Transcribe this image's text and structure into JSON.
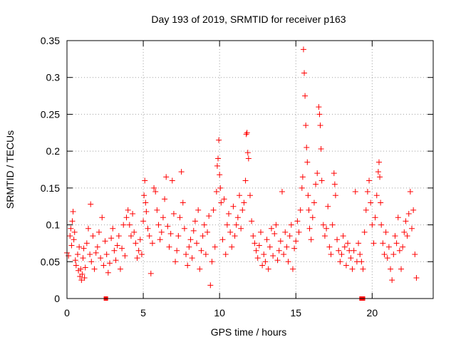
{
  "chart_data": {
    "type": "scatter",
    "title": "Day 193 of 2019, SRMTID for receiver p163",
    "xlabel": "GPS time / hours",
    "ylabel": "SRMTID / TECUs",
    "xlim": [
      0,
      24
    ],
    "ylim": [
      0,
      0.35
    ],
    "x_ticks": [
      0,
      5,
      10,
      15,
      20
    ],
    "x_tick_labels": [
      "0",
      "5",
      "10",
      "15",
      "20"
    ],
    "y_ticks": [
      0,
      0.05,
      0.1,
      0.15,
      0.2,
      0.25,
      0.3,
      0.35
    ],
    "y_tick_labels": [
      "0",
      "0.05",
      "0.1",
      "0.15",
      "0.2",
      "0.25",
      "0.3",
      "0.35"
    ],
    "grid": true,
    "marker": "+",
    "color": "#ff0000",
    "legend": "none",
    "series": [
      {
        "name": "SRMTID",
        "points": [
          [
            0.0,
            0.062
          ],
          [
            0.1,
            0.058
          ],
          [
            0.2,
            0.085
          ],
          [
            0.25,
            0.095
          ],
          [
            0.3,
            0.072
          ],
          [
            0.35,
            0.105
          ],
          [
            0.4,
            0.118
          ],
          [
            0.45,
            0.08
          ],
          [
            0.5,
            0.09
          ],
          [
            0.55,
            0.052
          ],
          [
            0.6,
            0.045
          ],
          [
            0.7,
            0.06
          ],
          [
            0.75,
            0.038
          ],
          [
            0.8,
            0.07
          ],
          [
            0.85,
            0.03
          ],
          [
            0.9,
            0.04
          ],
          [
            0.95,
            0.025
          ],
          [
            1.0,
            0.033
          ],
          [
            1.05,
            0.055
          ],
          [
            1.1,
            0.068
          ],
          [
            1.15,
            0.028
          ],
          [
            1.2,
            0.042
          ],
          [
            1.3,
            0.075
          ],
          [
            1.4,
            0.095
          ],
          [
            1.5,
            0.06
          ],
          [
            1.55,
            0.128
          ],
          [
            1.6,
            0.05
          ],
          [
            1.7,
            0.085
          ],
          [
            1.8,
            0.04
          ],
          [
            1.9,
            0.062
          ],
          [
            2.0,
            0.07
          ],
          [
            2.1,
            0.09
          ],
          [
            2.2,
            0.055
          ],
          [
            2.3,
            0.11
          ],
          [
            2.4,
            0.045
          ],
          [
            2.5,
            0.078
          ],
          [
            2.6,
            0.06
          ],
          [
            2.7,
            0.035
          ],
          [
            2.8,
            0.048
          ],
          [
            2.9,
            0.082
          ],
          [
            3.0,
            0.095
          ],
          [
            3.1,
            0.065
          ],
          [
            3.2,
            0.052
          ],
          [
            3.3,
            0.072
          ],
          [
            3.4,
            0.085
          ],
          [
            3.5,
            0.04
          ],
          [
            3.6,
            0.068
          ],
          [
            3.7,
            0.1
          ],
          [
            3.8,
            0.058
          ],
          [
            3.9,
            0.11
          ],
          [
            4.0,
            0.12
          ],
          [
            4.1,
            0.1
          ],
          [
            4.2,
            0.085
          ],
          [
            4.3,
            0.115
          ],
          [
            4.4,
            0.09
          ],
          [
            4.5,
            0.075
          ],
          [
            4.6,
            0.055
          ],
          [
            4.7,
            0.065
          ],
          [
            4.8,
            0.08
          ],
          [
            4.9,
            0.06
          ],
          [
            5.0,
            0.105
          ],
          [
            5.05,
            0.14
          ],
          [
            5.1,
            0.16
          ],
          [
            5.15,
            0.13
          ],
          [
            5.2,
            0.118
          ],
          [
            5.3,
            0.095
          ],
          [
            5.4,
            0.085
          ],
          [
            5.5,
            0.034
          ],
          [
            5.6,
            0.075
          ],
          [
            5.7,
            0.15
          ],
          [
            5.8,
            0.145
          ],
          [
            5.9,
            0.12
          ],
          [
            6.0,
            0.1
          ],
          [
            6.1,
            0.08
          ],
          [
            6.2,
            0.09
          ],
          [
            6.3,
            0.11
          ],
          [
            6.4,
            0.135
          ],
          [
            6.5,
            0.165
          ],
          [
            6.6,
            0.098
          ],
          [
            6.7,
            0.07
          ],
          [
            6.8,
            0.088
          ],
          [
            6.9,
            0.16
          ],
          [
            7.0,
            0.115
          ],
          [
            7.1,
            0.05
          ],
          [
            7.2,
            0.065
          ],
          [
            7.3,
            0.085
          ],
          [
            7.4,
            0.11
          ],
          [
            7.5,
            0.172
          ],
          [
            7.6,
            0.13
          ],
          [
            7.7,
            0.095
          ],
          [
            7.8,
            0.06
          ],
          [
            7.9,
            0.045
          ],
          [
            8.0,
            0.07
          ],
          [
            8.1,
            0.08
          ],
          [
            8.2,
            0.055
          ],
          [
            8.3,
            0.092
          ],
          [
            8.4,
            0.105
          ],
          [
            8.5,
            0.075
          ],
          [
            8.6,
            0.12
          ],
          [
            8.7,
            0.04
          ],
          [
            8.8,
            0.065
          ],
          [
            8.9,
            0.085
          ],
          [
            9.0,
            0.1
          ],
          [
            9.1,
            0.06
          ],
          [
            9.2,
            0.09
          ],
          [
            9.3,
            0.112
          ],
          [
            9.4,
            0.018
          ],
          [
            9.5,
            0.05
          ],
          [
            9.6,
            0.12
          ],
          [
            9.7,
            0.07
          ],
          [
            9.8,
            0.145
          ],
          [
            9.85,
            0.18
          ],
          [
            9.9,
            0.19
          ],
          [
            9.95,
            0.215
          ],
          [
            10.0,
            0.168
          ],
          [
            10.05,
            0.15
          ],
          [
            10.1,
            0.13
          ],
          [
            10.2,
            0.08
          ],
          [
            10.3,
            0.135
          ],
          [
            10.4,
            0.06
          ],
          [
            10.5,
            0.1
          ],
          [
            10.6,
            0.115
          ],
          [
            10.7,
            0.09
          ],
          [
            10.8,
            0.07
          ],
          [
            10.9,
            0.125
          ],
          [
            11.0,
            0.085
          ],
          [
            11.1,
            0.1
          ],
          [
            11.2,
            0.11
          ],
          [
            11.3,
            0.14
          ],
          [
            11.4,
            0.095
          ],
          [
            11.5,
            0.12
          ],
          [
            11.6,
            0.13
          ],
          [
            11.7,
            0.16
          ],
          [
            11.75,
            0.223
          ],
          [
            11.8,
            0.225
          ],
          [
            11.85,
            0.198
          ],
          [
            11.9,
            0.19
          ],
          [
            12.0,
            0.14
          ],
          [
            12.1,
            0.105
          ],
          [
            12.2,
            0.085
          ],
          [
            12.3,
            0.075
          ],
          [
            12.4,
            0.065
          ],
          [
            12.5,
            0.055
          ],
          [
            12.6,
            0.072
          ],
          [
            12.7,
            0.09
          ],
          [
            12.8,
            0.045
          ],
          [
            12.9,
            0.06
          ],
          [
            13.0,
            0.05
          ],
          [
            13.1,
            0.08
          ],
          [
            13.2,
            0.04
          ],
          [
            13.3,
            0.07
          ],
          [
            13.4,
            0.095
          ],
          [
            13.5,
            0.058
          ],
          [
            13.6,
            0.088
          ],
          [
            13.7,
            0.1
          ],
          [
            13.8,
            0.052
          ],
          [
            13.9,
            0.065
          ],
          [
            14.0,
            0.078
          ],
          [
            14.1,
            0.145
          ],
          [
            14.2,
            0.06
          ],
          [
            14.3,
            0.09
          ],
          [
            14.4,
            0.07
          ],
          [
            14.5,
            0.05
          ],
          [
            14.6,
            0.085
          ],
          [
            14.7,
            0.1
          ],
          [
            14.8,
            0.04
          ],
          [
            14.9,
            0.068
          ],
          [
            15.0,
            0.078
          ],
          [
            15.1,
            0.105
          ],
          [
            15.2,
            0.09
          ],
          [
            15.3,
            0.12
          ],
          [
            15.4,
            0.15
          ],
          [
            15.45,
            0.165
          ],
          [
            15.5,
            0.338
          ],
          [
            15.55,
            0.306
          ],
          [
            15.6,
            0.275
          ],
          [
            15.65,
            0.235
          ],
          [
            15.7,
            0.205
          ],
          [
            15.75,
            0.185
          ],
          [
            15.8,
            0.14
          ],
          [
            15.85,
            0.12
          ],
          [
            15.9,
            0.095
          ],
          [
            16.0,
            0.08
          ],
          [
            16.1,
            0.11
          ],
          [
            16.2,
            0.13
          ],
          [
            16.3,
            0.155
          ],
          [
            16.4,
            0.17
          ],
          [
            16.5,
            0.26
          ],
          [
            16.55,
            0.25
          ],
          [
            16.6,
            0.235
          ],
          [
            16.65,
            0.203
          ],
          [
            16.7,
            0.16
          ],
          [
            16.8,
            0.1
          ],
          [
            16.9,
            0.085
          ],
          [
            17.0,
            0.095
          ],
          [
            17.1,
            0.125
          ],
          [
            17.2,
            0.07
          ],
          [
            17.3,
            0.06
          ],
          [
            17.4,
            0.1
          ],
          [
            17.5,
            0.17
          ],
          [
            17.55,
            0.155
          ],
          [
            17.6,
            0.14
          ],
          [
            17.7,
            0.08
          ],
          [
            17.8,
            0.065
          ],
          [
            17.9,
            0.05
          ],
          [
            18.0,
            0.06
          ],
          [
            18.1,
            0.085
          ],
          [
            18.2,
            0.07
          ],
          [
            18.3,
            0.045
          ],
          [
            18.4,
            0.075
          ],
          [
            18.5,
            0.065
          ],
          [
            18.6,
            0.055
          ],
          [
            18.7,
            0.04
          ],
          [
            18.8,
            0.065
          ],
          [
            18.9,
            0.145
          ],
          [
            19.0,
            0.05
          ],
          [
            19.1,
            0.075
          ],
          [
            19.2,
            0.06
          ],
          [
            19.3,
            0.05
          ],
          [
            19.4,
            0.04
          ],
          [
            19.5,
            0.09
          ],
          [
            19.6,
            0.12
          ],
          [
            19.7,
            0.145
          ],
          [
            19.8,
            0.16
          ],
          [
            19.9,
            0.13
          ],
          [
            20.0,
            0.1
          ],
          [
            20.1,
            0.075
          ],
          [
            20.2,
            0.11
          ],
          [
            20.3,
            0.14
          ],
          [
            20.4,
            0.172
          ],
          [
            20.45,
            0.185
          ],
          [
            20.5,
            0.165
          ],
          [
            20.55,
            0.13
          ],
          [
            20.6,
            0.1
          ],
          [
            20.7,
            0.075
          ],
          [
            20.8,
            0.06
          ],
          [
            20.9,
            0.09
          ],
          [
            21.0,
            0.055
          ],
          [
            21.1,
            0.07
          ],
          [
            21.2,
            0.04
          ],
          [
            21.3,
            0.025
          ],
          [
            21.4,
            0.06
          ],
          [
            21.5,
            0.085
          ],
          [
            21.6,
            0.075
          ],
          [
            21.7,
            0.11
          ],
          [
            21.8,
            0.065
          ],
          [
            21.9,
            0.04
          ],
          [
            22.0,
            0.07
          ],
          [
            22.1,
            0.09
          ],
          [
            22.2,
            0.105
          ],
          [
            22.3,
            0.085
          ],
          [
            22.4,
            0.115
          ],
          [
            22.5,
            0.145
          ],
          [
            22.6,
            0.095
          ],
          [
            22.7,
            0.12
          ],
          [
            22.8,
            0.06
          ],
          [
            22.9,
            0.028
          ]
        ]
      }
    ],
    "gap_markers": [
      [
        2.55,
        0
      ],
      [
        19.3,
        0
      ],
      [
        19.4,
        0
      ]
    ]
  }
}
